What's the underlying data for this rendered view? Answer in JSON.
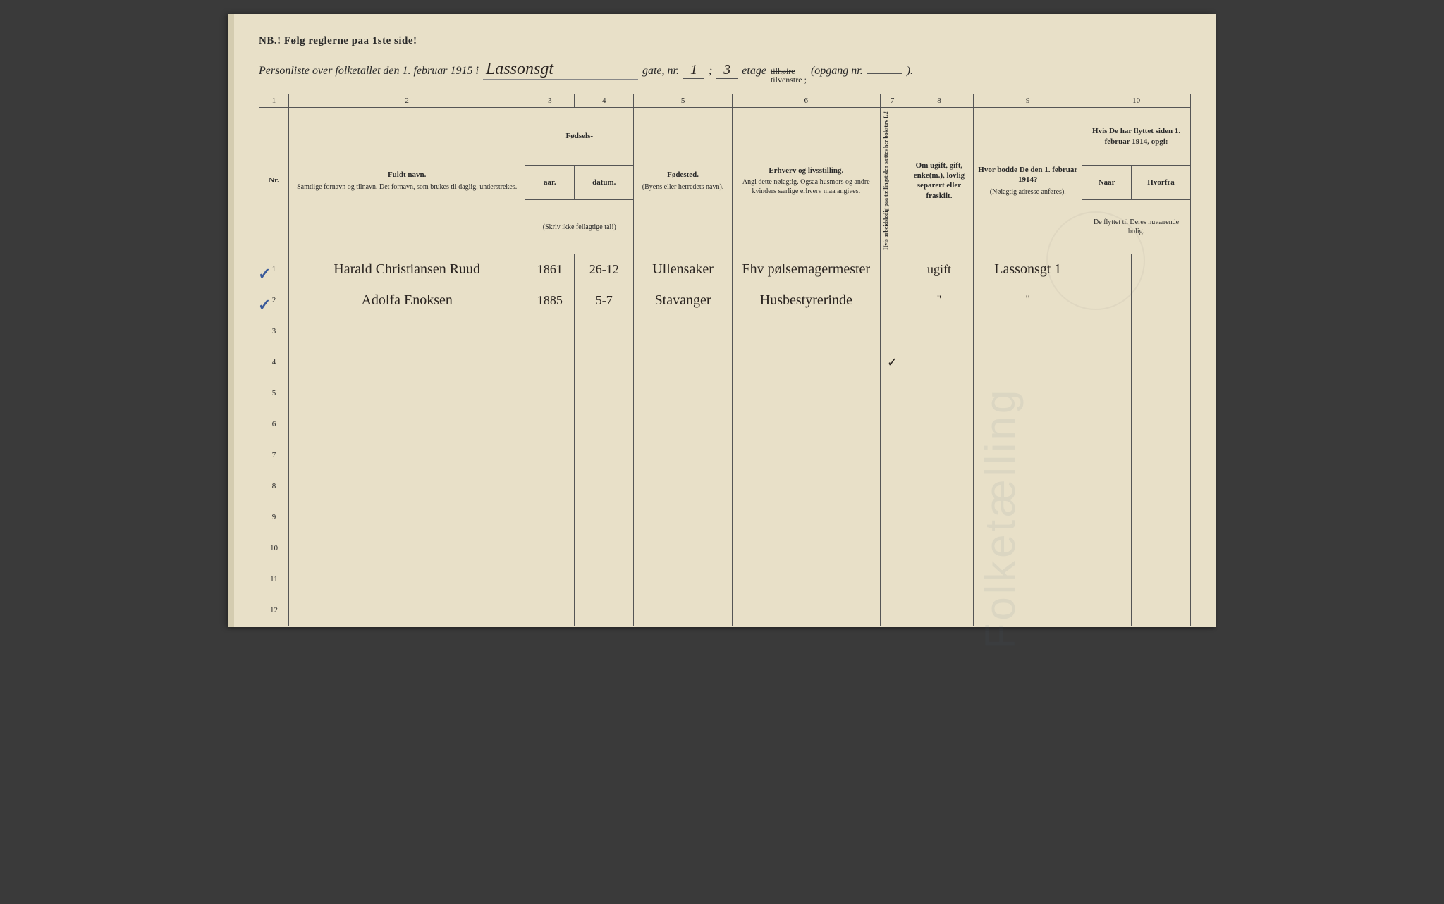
{
  "header": {
    "nb": "NB.!  Følg reglerne paa 1ste side!",
    "title_prefix": "Personliste over folketallet den 1. februar 1915 i",
    "street_hw": "Lassonsgt",
    "gate_label": "gate, nr.",
    "gate_nr": "1",
    "semicolon": ";",
    "etage_nr": "3",
    "etage_label": "etage",
    "tilhoire": "tilhøire",
    "tilvenstre": "tilvenstre ;",
    "opgang": "(opgang nr.",
    "opgang_end": ")."
  },
  "cols": {
    "c1": "1",
    "c2": "2",
    "c3": "3",
    "c4": "4",
    "c5": "5",
    "c6": "6",
    "c7": "7",
    "c8": "8",
    "c9": "9",
    "c10": "10"
  },
  "headers": {
    "nr": "Nr.",
    "fuldt": "Fuldt navn.",
    "fuldt_sub": "Samtlige fornavn og tilnavn.  Det fornavn, som brukes til daglig, understrekes.",
    "fodsels": "Fødsels-",
    "aar": "aar.",
    "datum": "datum.",
    "aar_sub": "(Skriv ikke feilagtige tal!)",
    "fodested": "Fødested.",
    "fodested_sub": "(Byens eller herredets navn).",
    "erhverv": "Erhverv og livsstilling.",
    "erhverv_sub": "Angi dette nøiagtig. Ogsaa husmors og andre kvinders særlige erhverv maa angives.",
    "col7": "Hvis arbeidsledig paa tællingstiden sættes her bokstav L.!",
    "col8": "Om ugift, gift, enke(m.), lovlig separert eller fraskilt.",
    "col9": "Hvor bodde De den 1. februar 1914?",
    "col9_sub": "(Nøiagtig adresse anføres).",
    "col10": "Hvis De har flyttet siden 1. februar 1914, opgi:",
    "naar": "Naar",
    "hvorfra": "Hvorfra",
    "col10_sub": "De flyttet til Deres nuværende bolig."
  },
  "rows": [
    {
      "nr": "1",
      "name": "Harald Christiansen Ruud",
      "year": "1861",
      "date": "26-12",
      "birthplace": "Ullensaker",
      "occupation": "Fhv pølsemagermester",
      "marital": "ugift",
      "addr1914": "Lassonsgt 1"
    },
    {
      "nr": "2",
      "name": "Adolfa Enoksen",
      "year": "1885",
      "date": "5-7",
      "birthplace": "Stavanger",
      "occupation": "Husbestyrerinde",
      "marital": "\"",
      "addr1914": "\""
    }
  ],
  "empty_nrs": [
    "3",
    "4",
    "5",
    "6",
    "7",
    "8",
    "9",
    "10",
    "11",
    "12"
  ]
}
